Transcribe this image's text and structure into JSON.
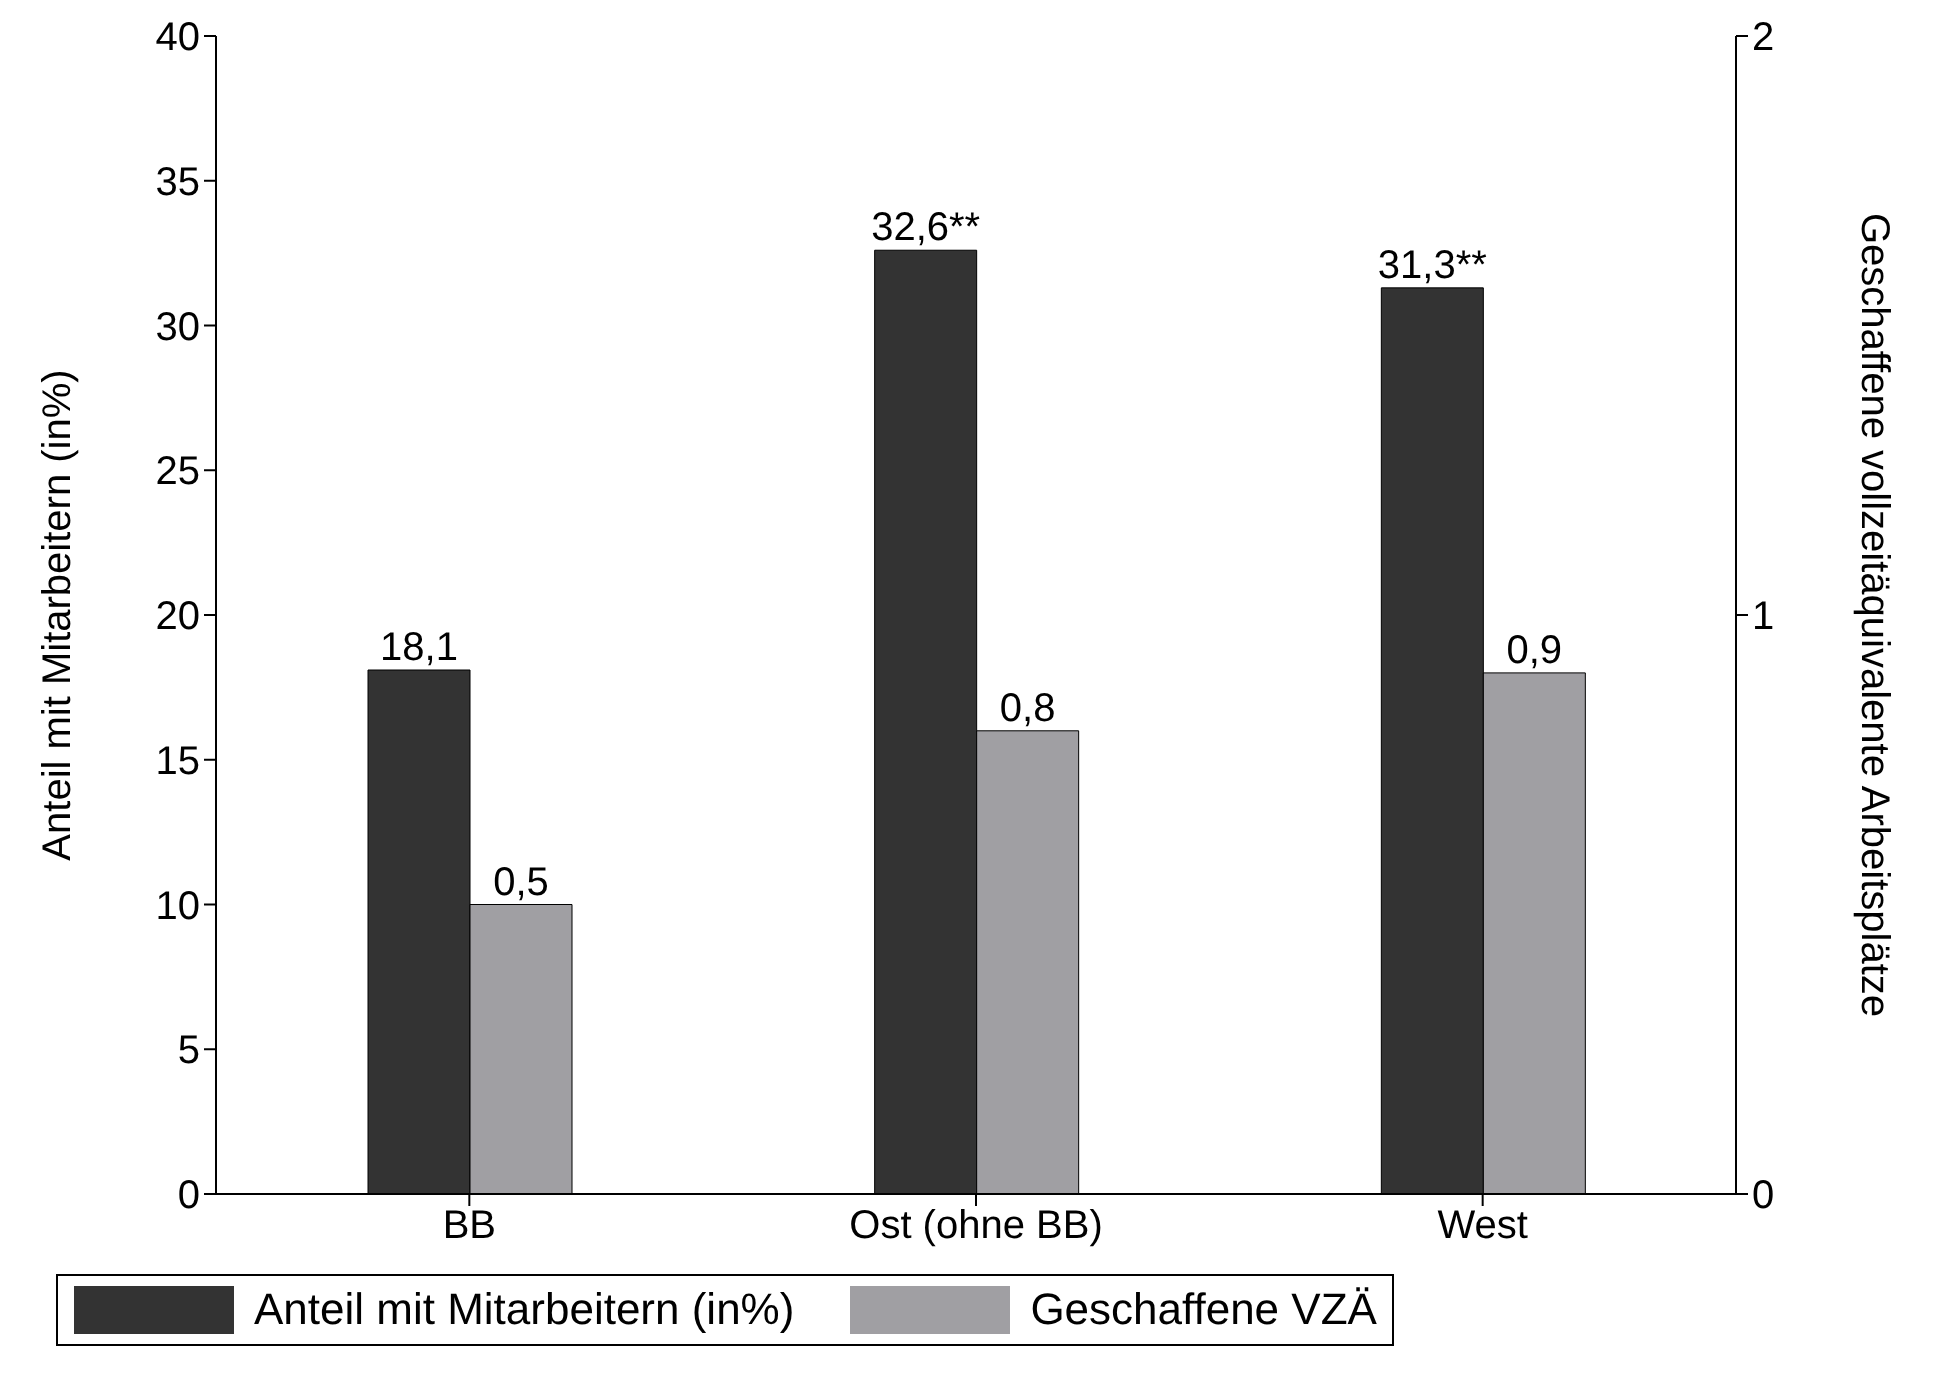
{
  "chart_data": {
    "type": "bar",
    "categories": [
      "BB",
      "Ost (ohne BB)",
      "West"
    ],
    "ylabel": "Anteil mit Mitarbeitern (in%)",
    "y2label": "Geschaffene vollzeitäquivalente Arbeitsplätze",
    "ylim": [
      0,
      40
    ],
    "yticks": [
      0,
      5,
      10,
      15,
      20,
      25,
      30,
      35,
      40
    ],
    "y2lim": [
      0,
      2
    ],
    "y2ticks": [
      0,
      1,
      2
    ],
    "grid": false,
    "legend": "bottom",
    "series": [
      {
        "name": "Anteil mit Mitarbeitern (in%)",
        "color": "#333333",
        "values": [
          18.1,
          32.6,
          31.3
        ],
        "value_labels": [
          "18,1",
          "32,6**",
          "31,3**"
        ]
      },
      {
        "name": "Geschaffene VZÄ",
        "color": "#a09fa3",
        "values": [
          0.5,
          0.8,
          0.9
        ],
        "value_labels": [
          "0,5",
          "0,8",
          "0,9"
        ],
        "axis": "y2"
      }
    ]
  }
}
